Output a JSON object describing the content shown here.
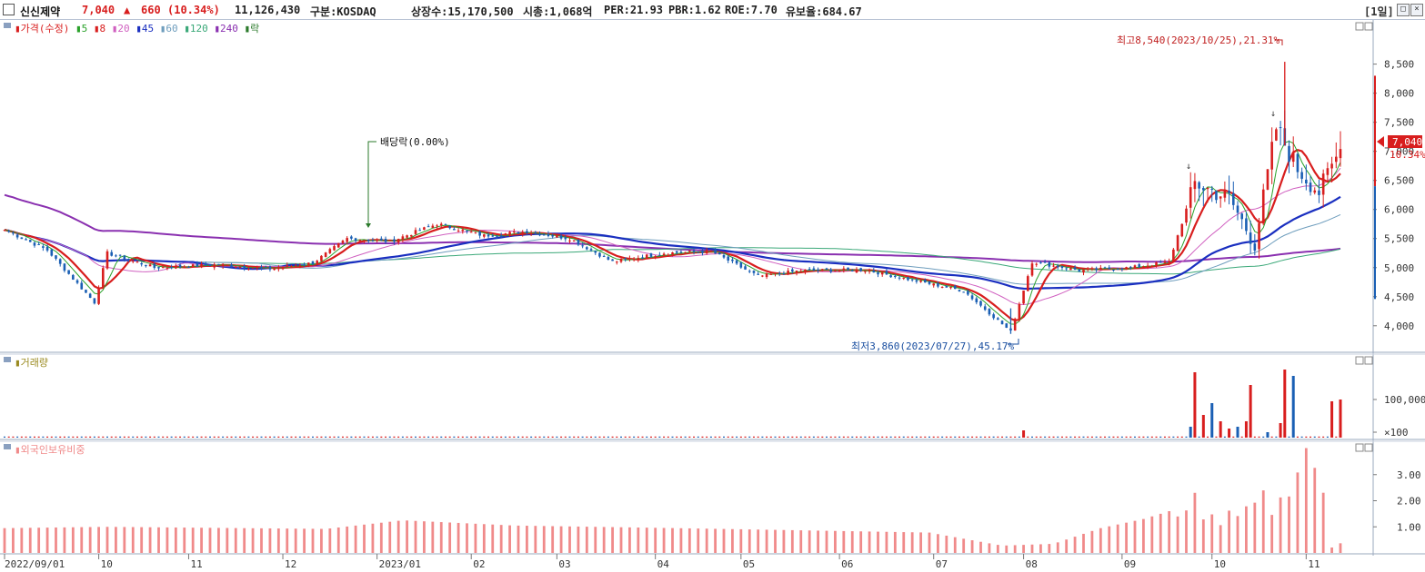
{
  "header": {
    "stock_name": "신신제약",
    "price": "7,040",
    "change_arrow": "▲",
    "change": "660",
    "change_pct": "(10.34%)",
    "volume": "11,126,430",
    "market": "구분:KOSDAQ",
    "shares": "상장수:15,170,500",
    "market_cap": "시총:1,068억",
    "per": "PER:21.93",
    "pbr": "PBR:1.62",
    "roe": "ROE:7.70",
    "reserve": "유보율:684.67",
    "period": "[1일]"
  },
  "colors": {
    "up": "#d81e1e",
    "down": "#1a5fb4",
    "ma5": "#2aa12a",
    "ma20": "#d060c0",
    "ma45": "#1a2fc0",
    "ma60": "#6e9dbd",
    "ma120": "#3aa878",
    "ma240": "#8a30b0",
    "foreign": "#f08a8a",
    "volume_label": "#9a8a20"
  },
  "chart_data": [
    {
      "type": "candlestick",
      "name": "price_panel",
      "legend": [
        "가격(수정)",
        "5",
        "8",
        "20",
        "45",
        "60",
        "120",
        "240",
        "락"
      ],
      "x_labels": [
        "2022/09/01",
        "10",
        "11",
        "12",
        "2023/01",
        "02",
        "03",
        "04",
        "05",
        "06",
        "07",
        "08",
        "09",
        "10",
        "11"
      ],
      "y_ticks": [
        "8,500",
        "8,000",
        "7,500",
        "7,000",
        "6,500",
        "6,000",
        "5,500",
        "5,000",
        "4,500",
        "4,000"
      ],
      "ylim": [
        3700,
        8900
      ],
      "last_price_tag": "7,040",
      "last_change_tag": "10.34%",
      "annotations": {
        "high": "최고8,540(2023/10/25),21.31%",
        "low": "최저3,860(2023/07/27),45.17%",
        "dividend": "배당락(0.00%)"
      },
      "anchors": [
        [
          "2022-09-01",
          5650
        ],
        [
          "2022-09-15",
          5300
        ],
        [
          "2022-09-30",
          4400
        ],
        [
          "2022-10-05",
          5250
        ],
        [
          "2022-10-20",
          5000
        ],
        [
          "2022-11-10",
          5050
        ],
        [
          "2022-11-28",
          4980
        ],
        [
          "2022-12-12",
          5080
        ],
        [
          "2022-12-22",
          5500
        ],
        [
          "2023-01-05",
          5450
        ],
        [
          "2023-01-20",
          5750
        ],
        [
          "2023-02-06",
          5550
        ],
        [
          "2023-02-20",
          5620
        ],
        [
          "2023-03-06",
          5500
        ],
        [
          "2023-03-20",
          5100
        ],
        [
          "2023-04-05",
          5250
        ],
        [
          "2023-04-20",
          5280
        ],
        [
          "2023-05-05",
          4850
        ],
        [
          "2023-05-20",
          4950
        ],
        [
          "2023-06-10",
          4960
        ],
        [
          "2023-06-25",
          4800
        ],
        [
          "2023-07-12",
          4600
        ],
        [
          "2023-07-27",
          3900
        ],
        [
          "2023-08-03",
          5100
        ],
        [
          "2023-08-18",
          4950
        ],
        [
          "2023-09-05",
          5000
        ],
        [
          "2023-09-18",
          5100
        ],
        [
          "2023-09-26",
          6450
        ],
        [
          "2023-10-06",
          6200
        ],
        [
          "2023-10-16",
          5400
        ],
        [
          "2023-10-23",
          7400
        ],
        [
          "2023-10-30",
          6700
        ],
        [
          "2023-11-06",
          6300
        ],
        [
          "2023-11-13",
          7040
        ]
      ]
    },
    {
      "type": "bar",
      "name": "volume_panel",
      "legend": [
        "거래량"
      ],
      "y_ticks": [
        "100,000",
        "×100"
      ],
      "series": [
        {
          "date": "2023-08-01",
          "value": 8
        },
        {
          "date": "2023-09-25",
          "value": 12
        },
        {
          "date": "2023-09-26",
          "value": 72
        },
        {
          "date": "2023-09-28",
          "value": 25
        },
        {
          "date": "2023-10-02",
          "value": 38
        },
        {
          "date": "2023-10-04",
          "value": 18
        },
        {
          "date": "2023-10-06",
          "value": 10
        },
        {
          "date": "2023-10-10",
          "value": 12
        },
        {
          "date": "2023-10-12",
          "value": 18
        },
        {
          "date": "2023-10-13",
          "value": 58
        },
        {
          "date": "2023-10-19",
          "value": 6
        },
        {
          "date": "2023-10-24",
          "value": 16
        },
        {
          "date": "2023-10-25",
          "value": 75
        },
        {
          "date": "2023-10-27",
          "value": 68
        },
        {
          "date": "2023-11-09",
          "value": 40
        },
        {
          "date": "2023-11-13",
          "value": 42
        }
      ]
    },
    {
      "type": "bar",
      "name": "foreign_ownership_panel",
      "legend": [
        "외국인보유비중"
      ],
      "y_ticks": [
        "3.00",
        "2.00",
        "1.00"
      ],
      "ylim": [
        0,
        4
      ],
      "anchors": [
        [
          "2022-09-01",
          0.95
        ],
        [
          "2022-10-05",
          1.0
        ],
        [
          "2022-12-15",
          0.92
        ],
        [
          "2023-01-10",
          1.25
        ],
        [
          "2023-02-15",
          1.05
        ],
        [
          "2023-04-10",
          0.95
        ],
        [
          "2023-06-30",
          0.78
        ],
        [
          "2023-07-25",
          0.28
        ],
        [
          "2023-08-10",
          0.35
        ],
        [
          "2023-08-25",
          0.95
        ],
        [
          "2023-09-10",
          1.3
        ],
        [
          "2023-09-20",
          1.7
        ],
        [
          "2023-09-26",
          2.35
        ],
        [
          "2023-10-05",
          1.5
        ],
        [
          "2023-10-12",
          1.95
        ],
        [
          "2023-10-20",
          2.25
        ],
        [
          "2023-10-24",
          3.2
        ],
        [
          "2023-10-30",
          3.65
        ],
        [
          "2023-11-06",
          3.0
        ],
        [
          "2023-11-09",
          0.3
        ],
        [
          "2023-11-13",
          0.3
        ]
      ]
    }
  ]
}
